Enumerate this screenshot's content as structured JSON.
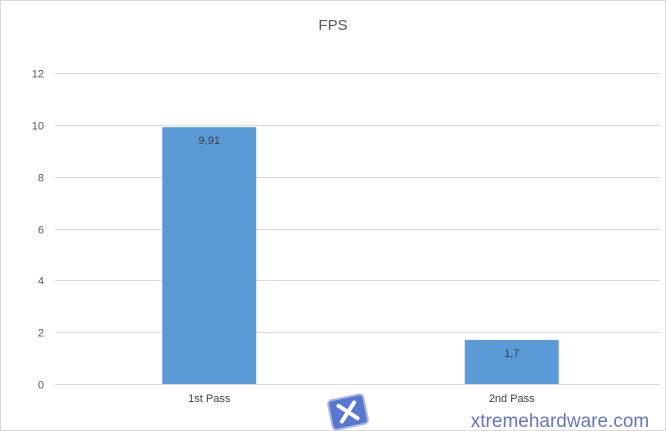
{
  "chart_data": {
    "type": "bar",
    "title": "FPS",
    "categories": [
      "1st Pass",
      "2nd Pass"
    ],
    "values": [
      9.91,
      1.7
    ],
    "data_labels": [
      "9,91",
      "1,7"
    ],
    "ylim": [
      0,
      12
    ],
    "yticks": [
      0,
      2,
      4,
      6,
      8,
      10,
      12
    ],
    "grid": true,
    "legend": "none",
    "xlabel": "",
    "ylabel": "",
    "bar_color": "#5B9BD5"
  },
  "watermark": {
    "text": "xtremehardware.com"
  }
}
